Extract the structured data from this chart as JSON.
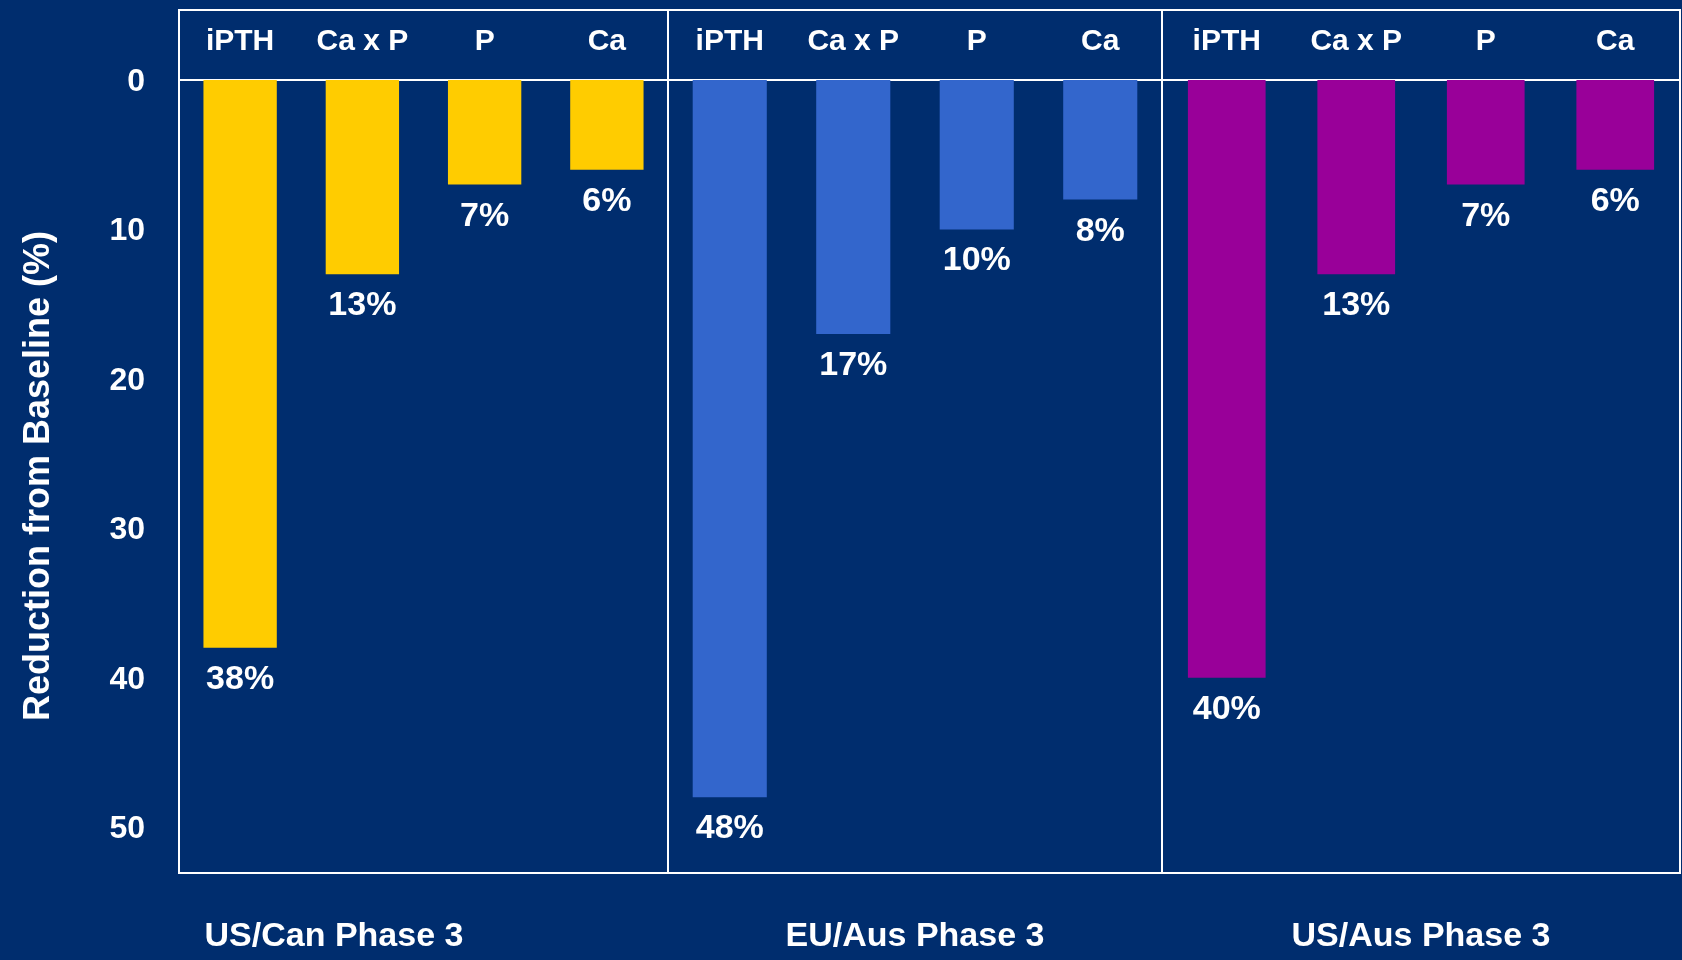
{
  "chart_data": [
    {
      "type": "bar",
      "xlabel": "US/Can Phase 3",
      "ylabel": "Reduction from Baseline (%)",
      "categories": [
        "iPTH",
        "Ca x P",
        "P",
        "Ca"
      ],
      "values": [
        38,
        13,
        7,
        6
      ],
      "value_labels": [
        "38%",
        "13%",
        "7%",
        "6%"
      ],
      "color": "#ffcc00",
      "ylim": [
        53,
        0
      ],
      "yticks": [
        0,
        10,
        20,
        30,
        40,
        50
      ]
    },
    {
      "type": "bar",
      "xlabel": "EU/Aus Phase 3",
      "categories": [
        "iPTH",
        "Ca x P",
        "P",
        "Ca"
      ],
      "values": [
        48,
        17,
        10,
        8
      ],
      "value_labels": [
        "48%",
        "17%",
        "10%",
        "8%"
      ],
      "color": "#3366cc",
      "ylim": [
        53,
        0
      ],
      "yticks": [
        0,
        10,
        20,
        30,
        40,
        50
      ],
      "tick_labels": "x"
    },
    {
      "type": "bar",
      "xlabel": "US/Aus Phase 3",
      "categories": [
        "iPTH",
        "Ca x P",
        "P",
        "Ca"
      ],
      "values": [
        40,
        13,
        7,
        6
      ],
      "value_labels": [
        "40%",
        "13%",
        "7%",
        "6%"
      ],
      "color": "#990099",
      "ylim": [
        53,
        0
      ],
      "yticks": [
        0,
        10,
        20,
        30,
        40,
        50
      ],
      "tick_labels": "x"
    }
  ]
}
